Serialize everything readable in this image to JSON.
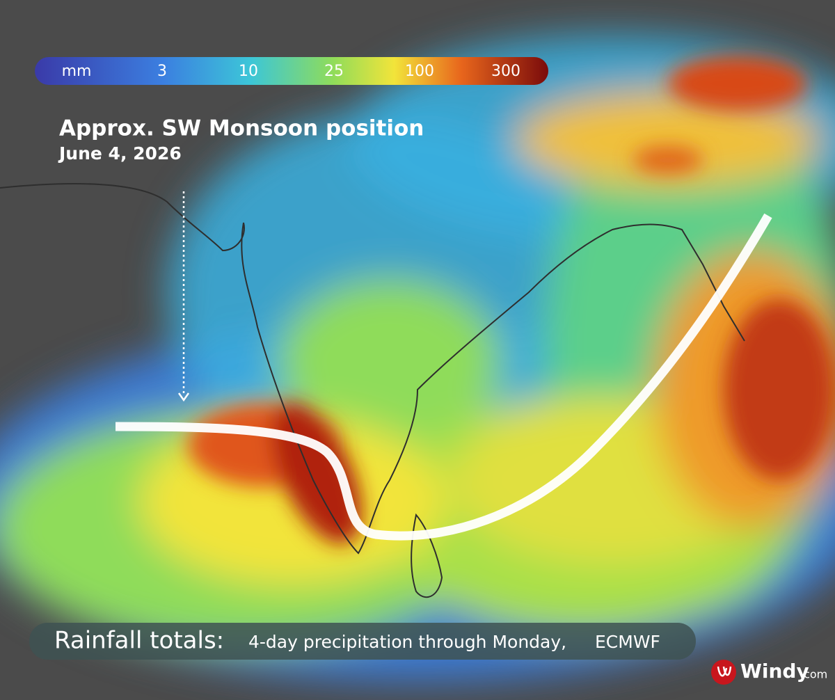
{
  "legend": {
    "labels": [
      "mm",
      "3",
      "10",
      "25",
      "100",
      "300"
    ]
  },
  "annotation": {
    "title": "Approx. SW Monsoon position",
    "date": "June 4, 2026"
  },
  "footer": {
    "label": "Rainfall totals:",
    "description": "4-day precipitation through Monday,",
    "source": "ECMWF"
  },
  "logo": {
    "name": "Windy",
    "suffix": ".com"
  }
}
